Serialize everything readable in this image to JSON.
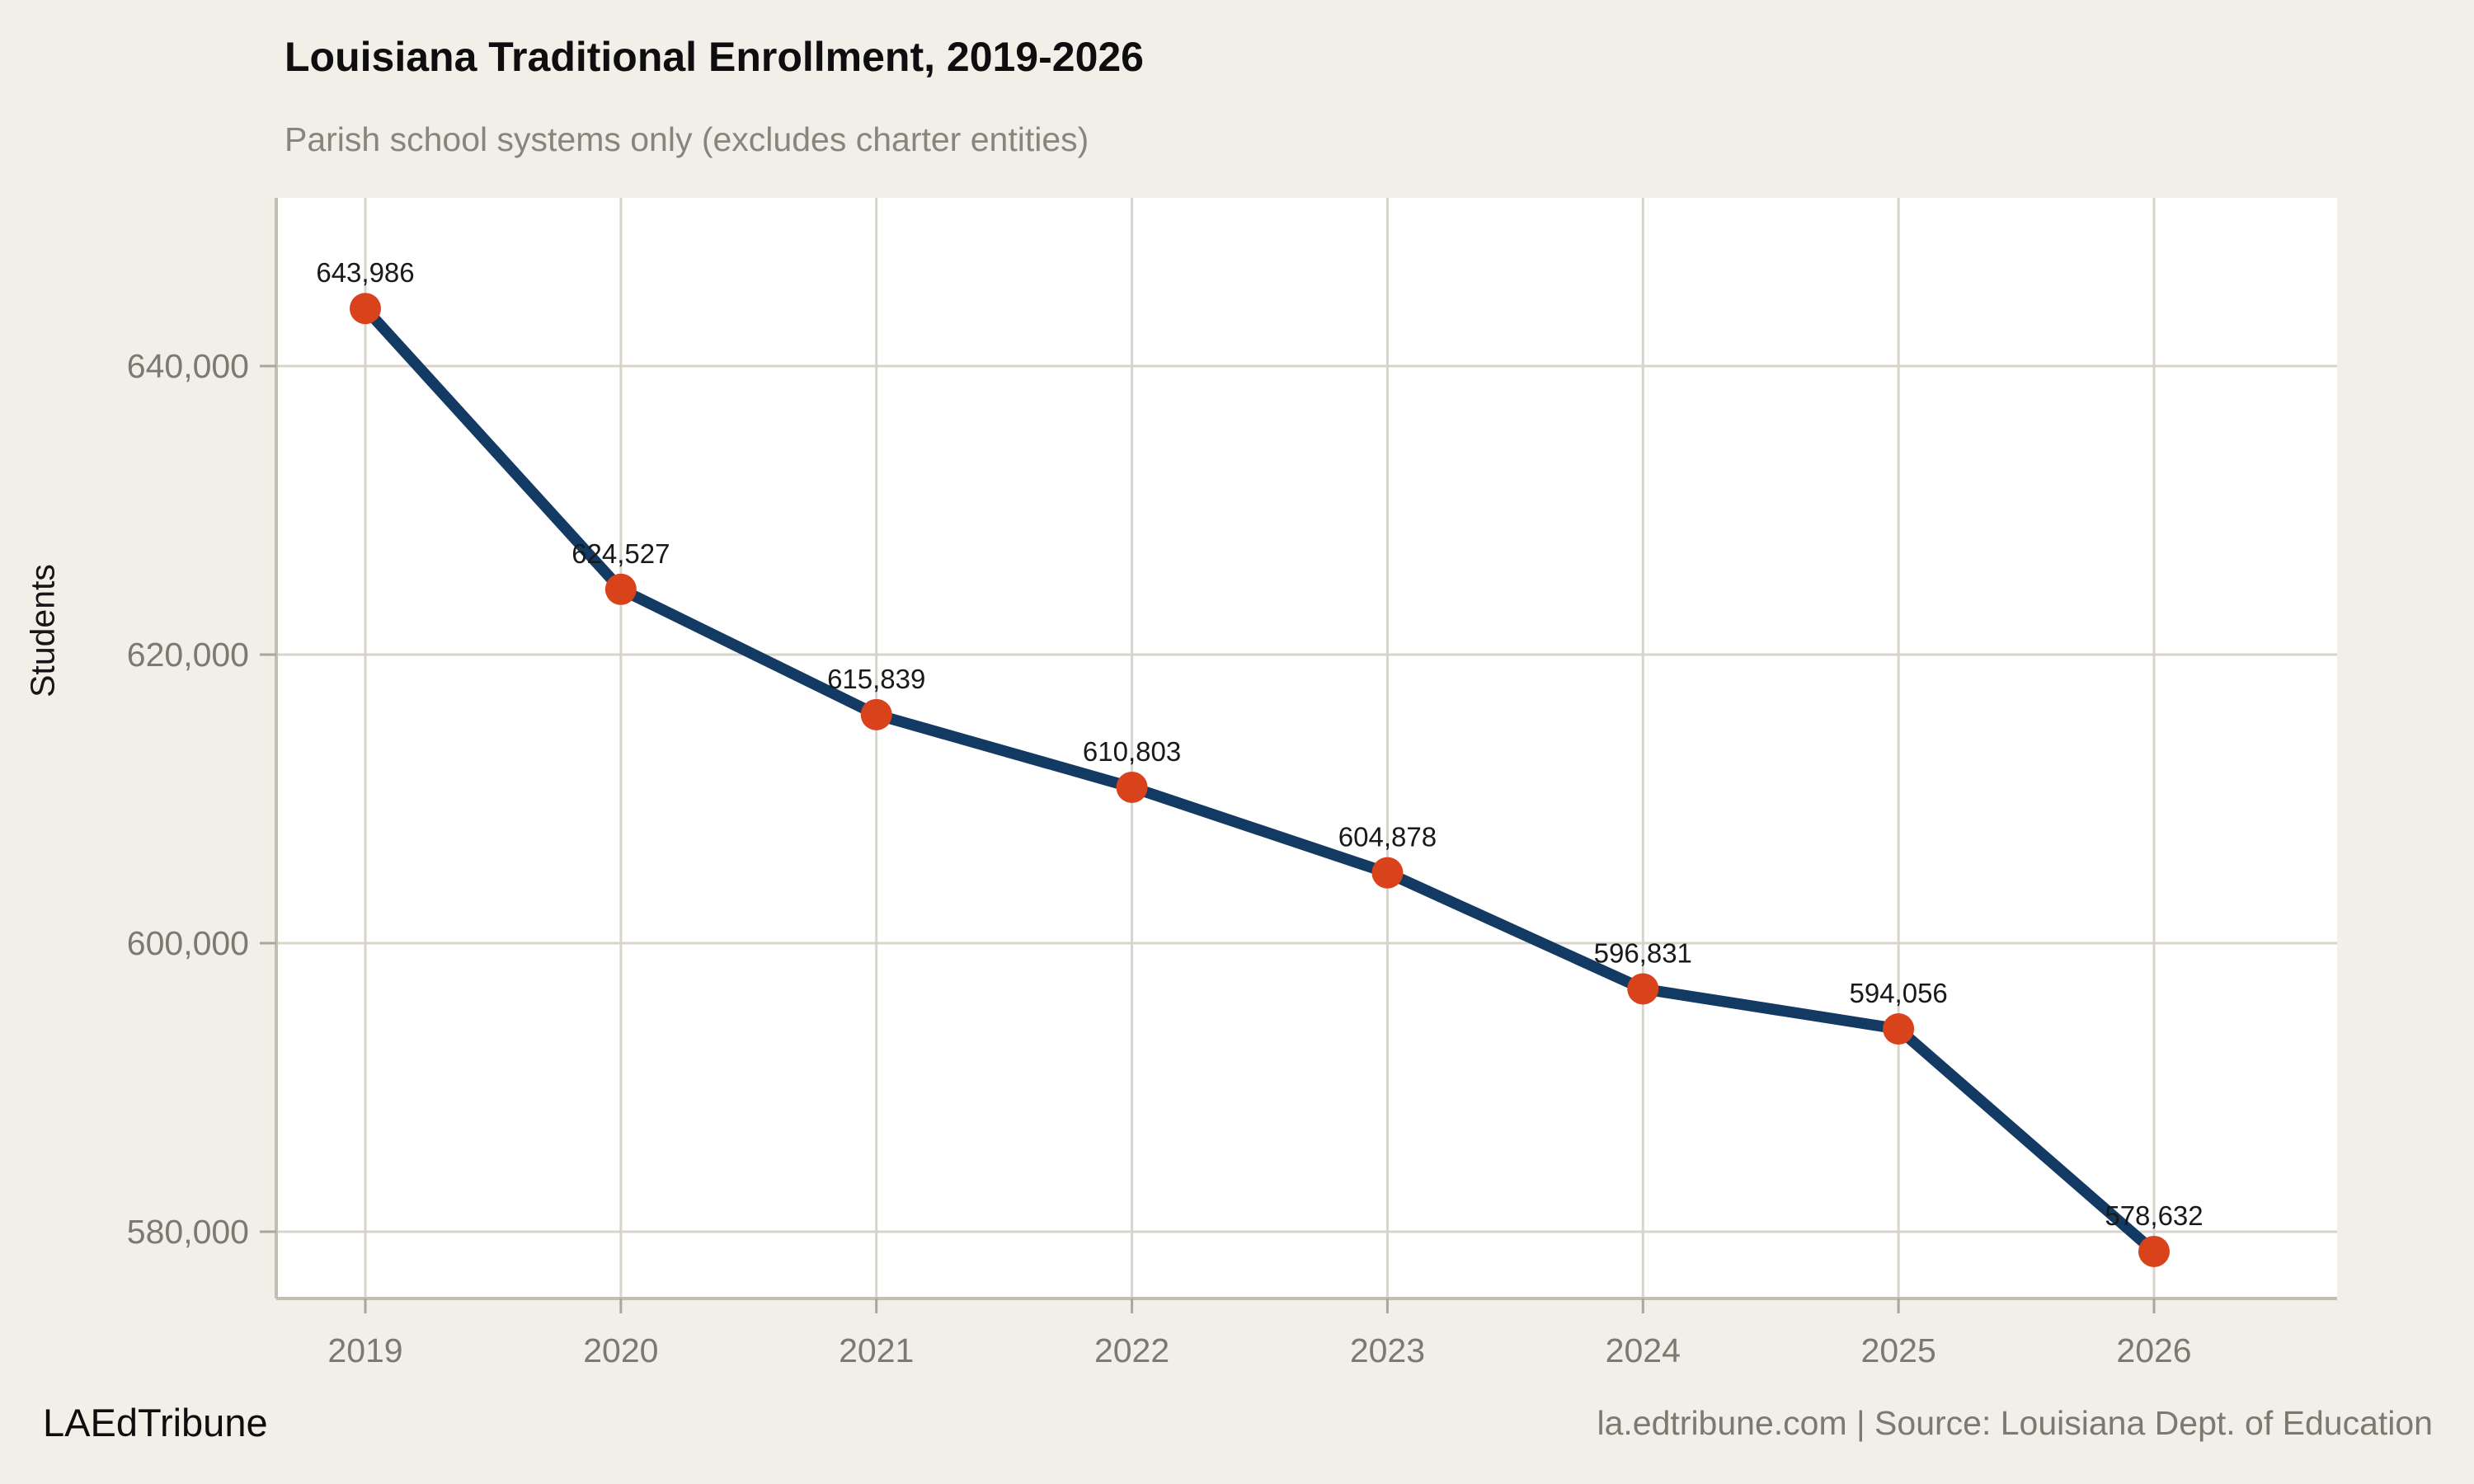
{
  "page": {
    "background": "#f2efe9",
    "footer_left": "LAEdTribune",
    "footer_right": "la.edtribune.com | Source: Louisiana Dept. of Education"
  },
  "chart_data": {
    "type": "line",
    "title": "Louisiana Traditional Enrollment, 2019-2026",
    "subtitle": "Parish school systems only (excludes charter entities)",
    "ylabel": "Students",
    "xlabel": "",
    "x": [
      2019,
      2020,
      2021,
      2022,
      2023,
      2024,
      2025,
      2026
    ],
    "series": [
      {
        "name": "Traditional enrollment",
        "values": [
          643986,
          624527,
          615839,
          610803,
          604878,
          596831,
          594056,
          578632
        ],
        "point_labels": [
          "643,986",
          "624,527",
          "615,839",
          "610,803",
          "604,878",
          "596,831",
          "594,056",
          "578,632"
        ]
      }
    ],
    "x_tick_labels": [
      "2019",
      "2020",
      "2021",
      "2022",
      "2023",
      "2024",
      "2025",
      "2026"
    ],
    "y_ticks": [
      580000,
      600000,
      620000,
      640000
    ],
    "y_tick_labels": [
      "580,000",
      "600,000",
      "620,000",
      "640,000"
    ],
    "ylim": [
      575400,
      651700
    ],
    "grid": true,
    "legend": "none",
    "colors": {
      "line": "#123a63",
      "marker": "#d8431c",
      "panel_bg": "#ffffff",
      "page_bg": "#f2efe9",
      "gridline": "#d8d4c9",
      "axis_line": "#c2beb2",
      "tick_mark": "#aba69b",
      "tick_label": "#7e7970",
      "data_label": "#191919",
      "title": "#0e0e0e",
      "subtitle": "#8a857c"
    }
  }
}
